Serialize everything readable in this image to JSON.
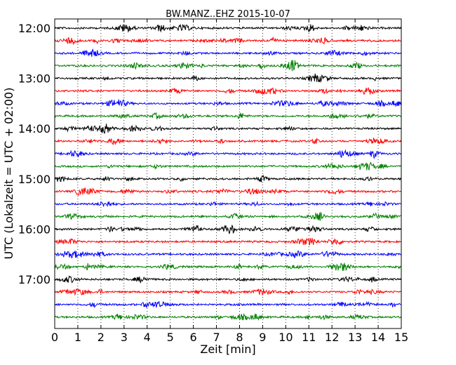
{
  "chart_data": {
    "type": "line",
    "title": "BW.MANZ..EHZ 2015-10-07",
    "xlabel": "Zeit  [min]",
    "ylabel": "UTC (Lokalzeit = UTC + 02:00)",
    "xlim": [
      0,
      15
    ],
    "x_ticks": [
      0,
      1,
      2,
      3,
      4,
      5,
      6,
      7,
      8,
      9,
      10,
      11,
      12,
      13,
      14,
      15
    ],
    "x_tick_labels": [
      "0",
      "1",
      "2",
      "3",
      "4",
      "5",
      "6",
      "7",
      "8",
      "9",
      "10",
      "11",
      "12",
      "13",
      "14",
      "15"
    ],
    "y_tick_labels": [
      "12:00",
      "13:00",
      "14:00",
      "15:00",
      "16:00",
      "17:00"
    ],
    "grid": {
      "x": true,
      "y": false,
      "style": "dotted"
    },
    "series_colors": [
      "#000000",
      "#ff0000",
      "#0000ff",
      "#008000"
    ],
    "series": [
      {
        "start": "12:00",
        "color": "#000000"
      },
      {
        "start": "12:15",
        "color": "#ff0000"
      },
      {
        "start": "12:30",
        "color": "#0000ff"
      },
      {
        "start": "12:45",
        "color": "#008000"
      },
      {
        "start": "13:00",
        "color": "#000000"
      },
      {
        "start": "13:15",
        "color": "#ff0000"
      },
      {
        "start": "13:30",
        "color": "#0000ff"
      },
      {
        "start": "13:45",
        "color": "#008000"
      },
      {
        "start": "14:00",
        "color": "#000000"
      },
      {
        "start": "14:15",
        "color": "#ff0000"
      },
      {
        "start": "14:30",
        "color": "#0000ff"
      },
      {
        "start": "14:45",
        "color": "#008000"
      },
      {
        "start": "15:00",
        "color": "#000000"
      },
      {
        "start": "15:15",
        "color": "#ff0000"
      },
      {
        "start": "15:30",
        "color": "#0000ff"
      },
      {
        "start": "15:45",
        "color": "#008000"
      },
      {
        "start": "16:00",
        "color": "#000000"
      },
      {
        "start": "16:15",
        "color": "#ff0000"
      },
      {
        "start": "16:30",
        "color": "#0000ff"
      },
      {
        "start": "16:45",
        "color": "#008000"
      },
      {
        "start": "17:00",
        "color": "#000000"
      },
      {
        "start": "17:15",
        "color": "#ff0000"
      },
      {
        "start": "17:30",
        "color": "#0000ff"
      },
      {
        "start": "17:45",
        "color": "#008000"
      }
    ]
  }
}
